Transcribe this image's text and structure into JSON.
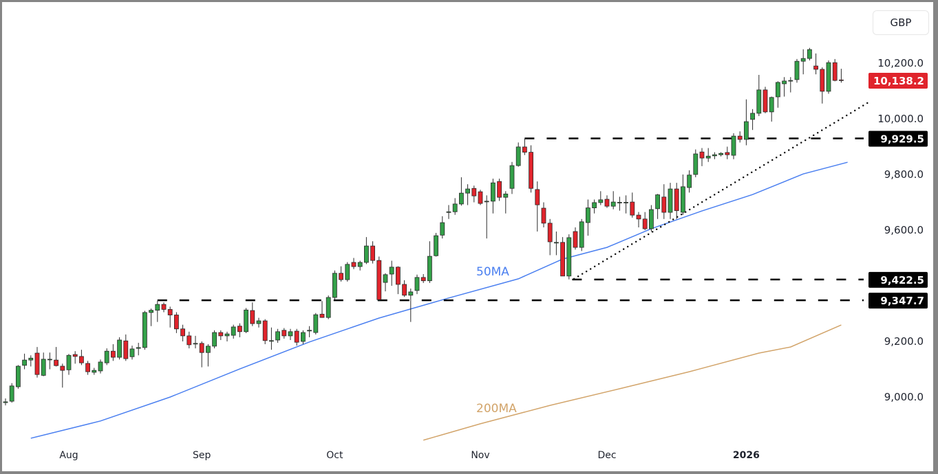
{
  "currency_button": "GBP",
  "chart_data": {
    "type": "candlestick",
    "y_ticks": [
      9000,
      9200,
      9600,
      9800,
      10000,
      10200
    ],
    "y_tick_labels": [
      "9,000.0",
      "9,200.0",
      "9,600.0",
      "9,800.0",
      "10,000.0",
      "10,200.0"
    ],
    "ylim": [
      8880,
      10330
    ],
    "x_ticks": [
      {
        "index": 10,
        "label": "Aug"
      },
      {
        "index": 31,
        "label": "Sep"
      },
      {
        "index": 52,
        "label": "Oct"
      },
      {
        "index": 75,
        "label": "Nov"
      },
      {
        "index": 95,
        "label": "Dec"
      },
      {
        "index": 117,
        "label": "2026",
        "bold": true
      }
    ],
    "colors": {
      "up": "#34a049",
      "down": "#e0242c",
      "ma50": "#4a7ff0",
      "ma200": "#d2a46a",
      "last_price": "#e0242c",
      "level": "#000000"
    },
    "candles": [
      [
        8980,
        8995,
        8970,
        8983
      ],
      [
        8985,
        9050,
        8980,
        9040
      ],
      [
        9037,
        9115,
        9030,
        9111
      ],
      [
        9114,
        9156,
        9100,
        9133
      ],
      [
        9133,
        9150,
        9110,
        9140
      ],
      [
        9158,
        9180,
        9070,
        9081
      ],
      [
        9078,
        9160,
        9075,
        9136
      ],
      [
        9136,
        9160,
        9100,
        9136
      ],
      [
        9133,
        9180,
        9110,
        9113
      ],
      [
        9111,
        9120,
        9034,
        9096
      ],
      [
        9098,
        9155,
        9080,
        9150
      ],
      [
        9153,
        9165,
        9120,
        9146
      ],
      [
        9146,
        9170,
        9115,
        9123
      ],
      [
        9121,
        9130,
        9080,
        9091
      ],
      [
        9089,
        9105,
        9080,
        9096
      ],
      [
        9094,
        9135,
        9085,
        9126
      ],
      [
        9123,
        9175,
        9115,
        9165
      ],
      [
        9165,
        9190,
        9130,
        9143
      ],
      [
        9143,
        9215,
        9135,
        9205
      ],
      [
        9202,
        9225,
        9130,
        9138
      ],
      [
        9145,
        9185,
        9135,
        9173
      ],
      [
        9175,
        9195,
        9150,
        9178
      ],
      [
        9178,
        9310,
        9170,
        9304
      ],
      [
        9304,
        9318,
        9255,
        9312
      ],
      [
        9312,
        9346,
        9270,
        9333
      ],
      [
        9333,
        9340,
        9305,
        9315
      ],
      [
        9315,
        9325,
        9250,
        9295
      ],
      [
        9295,
        9305,
        9230,
        9245
      ],
      [
        9245,
        9260,
        9200,
        9220
      ],
      [
        9220,
        9235,
        9175,
        9188
      ],
      [
        9193,
        9220,
        9175,
        9193
      ],
      [
        9193,
        9200,
        9107,
        9160
      ],
      [
        9160,
        9190,
        9110,
        9183
      ],
      [
        9183,
        9240,
        9175,
        9232
      ],
      [
        9232,
        9240,
        9205,
        9220
      ],
      [
        9220,
        9235,
        9200,
        9227
      ],
      [
        9222,
        9260,
        9210,
        9252
      ],
      [
        9255,
        9265,
        9215,
        9235
      ],
      [
        9235,
        9320,
        9230,
        9313
      ],
      [
        9311,
        9340,
        9255,
        9264
      ],
      [
        9264,
        9285,
        9250,
        9274
      ],
      [
        9274,
        9280,
        9190,
        9203
      ],
      [
        9203,
        9250,
        9170,
        9203
      ],
      [
        9205,
        9245,
        9195,
        9235
      ],
      [
        9240,
        9248,
        9210,
        9220
      ],
      [
        9220,
        9245,
        9205,
        9235
      ],
      [
        9237,
        9245,
        9185,
        9197
      ],
      [
        9200,
        9240,
        9190,
        9232
      ],
      [
        9240,
        9255,
        9215,
        9240
      ],
      [
        9232,
        9302,
        9225,
        9296
      ],
      [
        9298,
        9345,
        9285,
        9286
      ],
      [
        9286,
        9365,
        9280,
        9358
      ],
      [
        9358,
        9455,
        9350,
        9445
      ],
      [
        9445,
        9470,
        9415,
        9422
      ],
      [
        9422,
        9485,
        9415,
        9477
      ],
      [
        9484,
        9500,
        9460,
        9469
      ],
      [
        9469,
        9490,
        9455,
        9484
      ],
      [
        9484,
        9575,
        9478,
        9543
      ],
      [
        9543,
        9560,
        9480,
        9491
      ],
      [
        9491,
        9505,
        9345,
        9350
      ],
      [
        9412,
        9445,
        9380,
        9440
      ],
      [
        9442,
        9490,
        9400,
        9467
      ],
      [
        9467,
        9470,
        9370,
        9405
      ],
      [
        9405,
        9420,
        9360,
        9366
      ],
      [
        9366,
        9390,
        9270,
        9378
      ],
      [
        9383,
        9440,
        9370,
        9430
      ],
      [
        9430,
        9442,
        9410,
        9418
      ],
      [
        9418,
        9560,
        9410,
        9506
      ],
      [
        9508,
        9590,
        9505,
        9580
      ],
      [
        9582,
        9650,
        9570,
        9627
      ],
      [
        9666,
        9690,
        9640,
        9666
      ],
      [
        9666,
        9715,
        9655,
        9694
      ],
      [
        9694,
        9790,
        9688,
        9733
      ],
      [
        9733,
        9765,
        9690,
        9748
      ],
      [
        9750,
        9760,
        9700,
        9723
      ],
      [
        9738,
        9745,
        9690,
        9696
      ],
      [
        9704,
        9725,
        9570,
        9704
      ],
      [
        9704,
        9785,
        9660,
        9770
      ],
      [
        9775,
        9785,
        9705,
        9718
      ],
      [
        9718,
        9740,
        9660,
        9730
      ],
      [
        9750,
        9845,
        9730,
        9832
      ],
      [
        9832,
        9915,
        9828,
        9899
      ],
      [
        9899,
        9929,
        9870,
        9880
      ],
      [
        9880,
        9905,
        9735,
        9750
      ],
      [
        9746,
        9775,
        9595,
        9691
      ],
      [
        9679,
        9700,
        9610,
        9625
      ],
      [
        9625,
        9640,
        9510,
        9558
      ],
      [
        9556,
        9595,
        9510,
        9556
      ],
      [
        9556,
        9575,
        9435,
        9435
      ],
      [
        9435,
        9585,
        9423,
        9573
      ],
      [
        9595,
        9610,
        9530,
        9538
      ],
      [
        9538,
        9640,
        9525,
        9630
      ],
      [
        9627,
        9710,
        9580,
        9680
      ],
      [
        9680,
        9710,
        9660,
        9699
      ],
      [
        9699,
        9740,
        9690,
        9709
      ],
      [
        9711,
        9725,
        9680,
        9686
      ],
      [
        9686,
        9740,
        9675,
        9701
      ],
      [
        9700,
        9720,
        9670,
        9700
      ],
      [
        9700,
        9725,
        9660,
        9700
      ],
      [
        9701,
        9735,
        9645,
        9654
      ],
      [
        9654,
        9665,
        9610,
        9640
      ],
      [
        9640,
        9665,
        9600,
        9605
      ],
      [
        9605,
        9690,
        9595,
        9674
      ],
      [
        9677,
        9730,
        9640,
        9727
      ],
      [
        9719,
        9765,
        9640,
        9664
      ],
      [
        9664,
        9770,
        9640,
        9748
      ],
      [
        9748,
        9770,
        9640,
        9670
      ],
      [
        9664,
        9800,
        9655,
        9756
      ],
      [
        9753,
        9815,
        9735,
        9798
      ],
      [
        9800,
        9890,
        9790,
        9874
      ],
      [
        9881,
        9895,
        9830,
        9859
      ],
      [
        9859,
        9895,
        9845,
        9866
      ],
      [
        9867,
        9880,
        9855,
        9871
      ],
      [
        9871,
        9880,
        9865,
        9876
      ],
      [
        9879,
        9900,
        9855,
        9871
      ],
      [
        9869,
        9948,
        9855,
        9938
      ],
      [
        9938,
        9955,
        9915,
        9926
      ],
      [
        9926,
        10070,
        9905,
        9990
      ],
      [
        9998,
        10035,
        9960,
        10020
      ],
      [
        10020,
        10158,
        10010,
        10104
      ],
      [
        10104,
        10115,
        10020,
        10025
      ],
      [
        10025,
        10080,
        9990,
        10077
      ],
      [
        10079,
        10135,
        10040,
        10131
      ],
      [
        10126,
        10150,
        10080,
        10136
      ],
      [
        10138,
        10150,
        10095,
        10138
      ],
      [
        10141,
        10215,
        10130,
        10207
      ],
      [
        10207,
        10250,
        10160,
        10217
      ],
      [
        10217,
        10255,
        10210,
        10249
      ],
      [
        10190,
        10235,
        10160,
        10178
      ],
      [
        10178,
        10185,
        10055,
        10099
      ],
      [
        10099,
        10210,
        10090,
        10202
      ],
      [
        10202,
        10215,
        10135,
        10138
      ],
      [
        10140,
        10180,
        10130,
        10138
      ]
    ],
    "ma50": {
      "label": "50MA",
      "points": [
        [
          4,
          8852
        ],
        [
          15,
          8914
        ],
        [
          26,
          9000
        ],
        [
          37,
          9101
        ],
        [
          48,
          9198
        ],
        [
          59,
          9284
        ],
        [
          70,
          9356
        ],
        [
          81,
          9425
        ],
        [
          88,
          9496
        ],
        [
          95,
          9538
        ],
        [
          102,
          9605
        ],
        [
          110,
          9669
        ],
        [
          118,
          9728
        ],
        [
          126,
          9802
        ],
        [
          133,
          9844
        ]
      ]
    },
    "ma200": {
      "label": "200MA",
      "points": [
        [
          66,
          8845
        ],
        [
          75,
          8904
        ],
        [
          86,
          8970
        ],
        [
          97,
          9030
        ],
        [
          108,
          9091
        ],
        [
          119,
          9158
        ],
        [
          124,
          9180
        ],
        [
          132,
          9259
        ]
      ]
    },
    "levels": [
      {
        "value": 9929.5,
        "label": "9,929.5",
        "from_index": 82
      },
      {
        "value": 9422.5,
        "label": "9,422.5",
        "from_index": 89.5
      },
      {
        "value": 9347.7,
        "label": "9,347.7",
        "from_index": 24
      }
    ],
    "trendline": {
      "style": "dotted",
      "from": [
        89.8,
        9425
      ],
      "to": [
        136.5,
        10062
      ]
    },
    "last_price": {
      "value": 10138.2,
      "label": "10,138.2"
    }
  }
}
